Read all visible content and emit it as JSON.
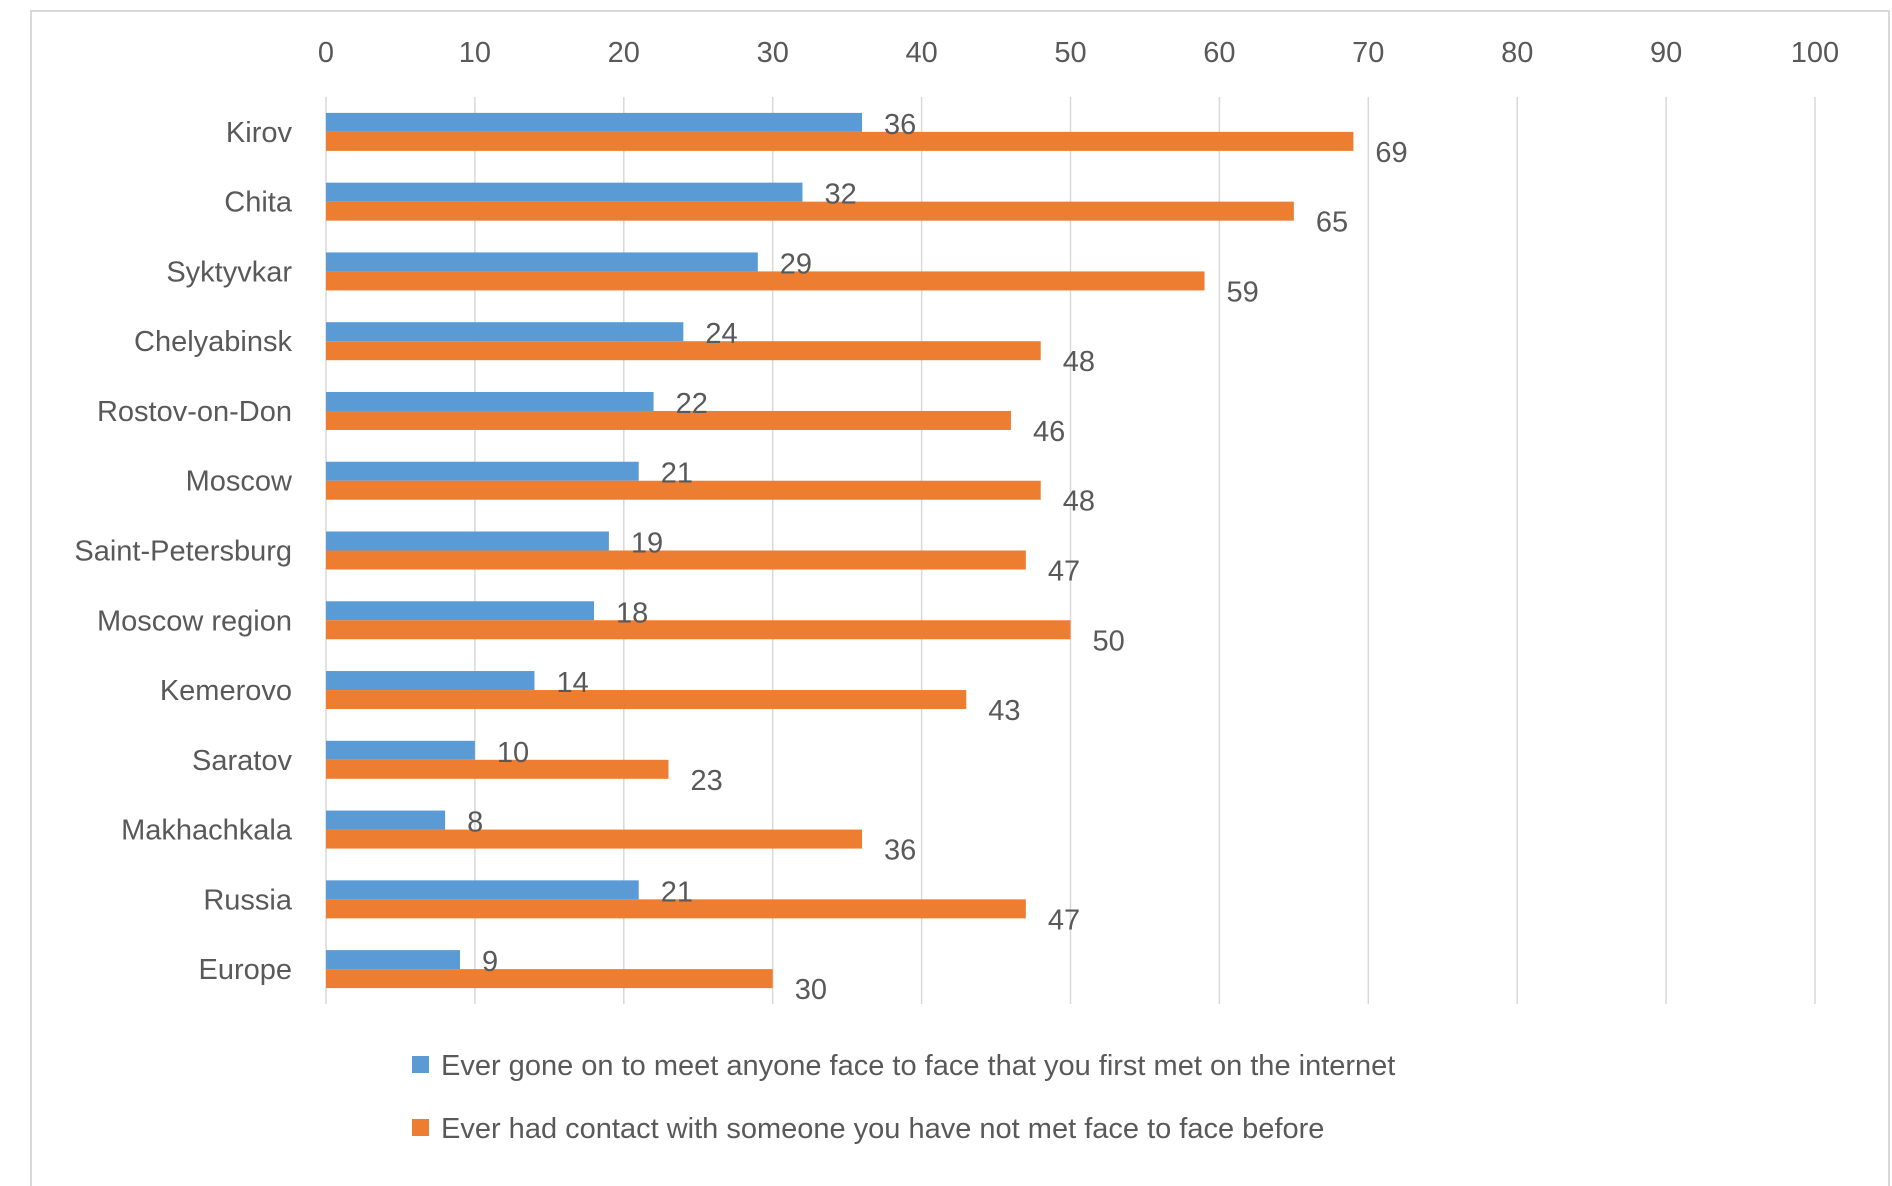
{
  "chart_data": {
    "type": "bar",
    "orientation": "horizontal",
    "categories": [
      "Kirov",
      "Chita",
      "Syktyvkar",
      "Chelyabinsk",
      "Rostov-on-Don",
      "Moscow",
      "Saint-Petersburg",
      "Moscow region",
      "Kemerovo",
      "Saratov",
      "Makhachkala",
      "Russia",
      "Europe"
    ],
    "series": [
      {
        "name": "Ever gone on to meet anyone face to face that you first met on the internet",
        "color": "#5b9bd5",
        "values": [
          36,
          32,
          29,
          24,
          22,
          21,
          19,
          18,
          14,
          10,
          8,
          21,
          9
        ]
      },
      {
        "name": "Ever had contact with someone you have not met face to face before",
        "color": "#ed7d31",
        "values": [
          69,
          65,
          59,
          48,
          46,
          48,
          47,
          50,
          43,
          23,
          36,
          47,
          30
        ]
      }
    ],
    "xlim": [
      0,
      100
    ],
    "xticks": [
      0,
      10,
      20,
      30,
      40,
      50,
      60,
      70,
      80,
      90,
      100
    ],
    "xaxis_position": "top",
    "grid": true,
    "gridline_color": "#d9d9d9",
    "data_labels": true,
    "legend_placement": "bottom",
    "title": "",
    "xlabel": "",
    "ylabel": ""
  }
}
